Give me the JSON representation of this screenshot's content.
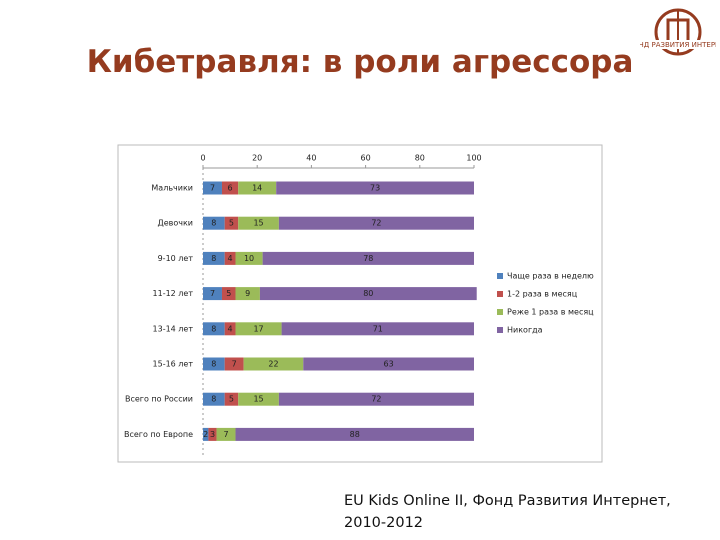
{
  "chart_data": {
    "type": "stacked-bar-horizontal",
    "title": "Кибетравля: в роли агрессора",
    "categories": [
      "Мальчики",
      "Девочки",
      "9-10 лет",
      "11-12 лет",
      "13-14 лет",
      "15-16 лет",
      "Всего по России",
      "Всего по Европе"
    ],
    "series": [
      {
        "name": "Чаще раза в неделю",
        "color": "#4f81bd",
        "values": [
          7,
          8,
          8,
          7,
          8,
          8,
          8,
          2
        ]
      },
      {
        "name": "1-2 раза в месяц",
        "color": "#c0504d",
        "values": [
          6,
          5,
          4,
          5,
          4,
          7,
          5,
          3
        ]
      },
      {
        "name": "Реже 1 раза в месяц",
        "color": "#9bbb59",
        "values": [
          14,
          15,
          10,
          9,
          17,
          22,
          15,
          7
        ]
      },
      {
        "name": "Никогда",
        "color": "#8064a2",
        "values": [
          73,
          72,
          78,
          80,
          71,
          63,
          72,
          88
        ]
      }
    ],
    "xlim": [
      0,
      100
    ],
    "xticks": [
      0,
      20,
      40,
      60,
      80,
      100
    ],
    "grid": false,
    "legend": "right"
  },
  "source": [
    "EU Kids Online II, Фонд Развития Интернет,",
    "2010-2012"
  ],
  "logo": {
    "text": "ФОНД РАЗВИТИЯ ИНТЕРНЕТ"
  }
}
